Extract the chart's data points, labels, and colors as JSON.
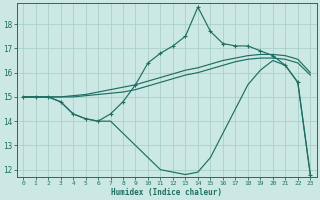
{
  "xlabel": "Humidex (Indice chaleur)",
  "bg_color": "#cce8e4",
  "grid_color": "#aacfcb",
  "line_color": "#1e6e64",
  "xlim": [
    -0.5,
    23.5
  ],
  "ylim": [
    11.7,
    18.85
  ],
  "yticks": [
    12,
    13,
    14,
    15,
    16,
    17,
    18
  ],
  "xticks": [
    0,
    1,
    2,
    3,
    4,
    5,
    6,
    7,
    8,
    9,
    10,
    11,
    12,
    13,
    14,
    15,
    16,
    17,
    18,
    19,
    20,
    21,
    22,
    23
  ],
  "curve_main_x": [
    0,
    1,
    2,
    3,
    4,
    5,
    6,
    7,
    8,
    9,
    10,
    11,
    12,
    13,
    14,
    15,
    16,
    17,
    18,
    19,
    20,
    21,
    22,
    23
  ],
  "curve_main_y": [
    15.0,
    15.0,
    15.0,
    14.8,
    14.3,
    14.1,
    14.0,
    14.3,
    14.8,
    15.5,
    16.4,
    16.8,
    17.1,
    17.5,
    18.7,
    17.7,
    17.2,
    17.1,
    17.1,
    16.9,
    16.7,
    16.3,
    15.6,
    11.8
  ],
  "curve_upper_x": [
    0,
    1,
    2,
    3,
    4,
    5,
    6,
    7,
    8,
    9,
    10,
    11,
    12,
    13,
    14,
    15,
    16,
    17,
    18,
    19,
    20,
    21,
    22,
    23
  ],
  "curve_upper_y": [
    15.0,
    15.0,
    15.0,
    15.0,
    15.05,
    15.1,
    15.2,
    15.3,
    15.4,
    15.5,
    15.65,
    15.8,
    15.95,
    16.1,
    16.2,
    16.35,
    16.5,
    16.6,
    16.7,
    16.75,
    16.75,
    16.7,
    16.55,
    16.0
  ],
  "curve_lower_x": [
    0,
    1,
    2,
    3,
    4,
    5,
    6,
    7,
    8,
    9,
    10,
    11,
    12,
    13,
    14,
    15,
    16,
    17,
    18,
    19,
    20,
    21,
    22,
    23
  ],
  "curve_lower_y": [
    15.0,
    15.0,
    15.0,
    15.0,
    15.0,
    15.05,
    15.1,
    15.15,
    15.2,
    15.3,
    15.45,
    15.6,
    15.75,
    15.9,
    16.0,
    16.15,
    16.3,
    16.45,
    16.55,
    16.6,
    16.6,
    16.55,
    16.4,
    15.9
  ],
  "curve_bottom_x": [
    0,
    1,
    2,
    3,
    4,
    5,
    6,
    7,
    8,
    9,
    10,
    11,
    12,
    13,
    14,
    15,
    16,
    17,
    18,
    19,
    20,
    21,
    22,
    23
  ],
  "curve_bottom_y": [
    15.0,
    15.0,
    15.0,
    14.8,
    14.3,
    14.1,
    14.0,
    14.0,
    13.5,
    13.0,
    12.5,
    12.0,
    11.9,
    11.8,
    11.9,
    12.5,
    13.5,
    14.5,
    15.5,
    16.1,
    16.5,
    16.3,
    15.6,
    11.8
  ]
}
